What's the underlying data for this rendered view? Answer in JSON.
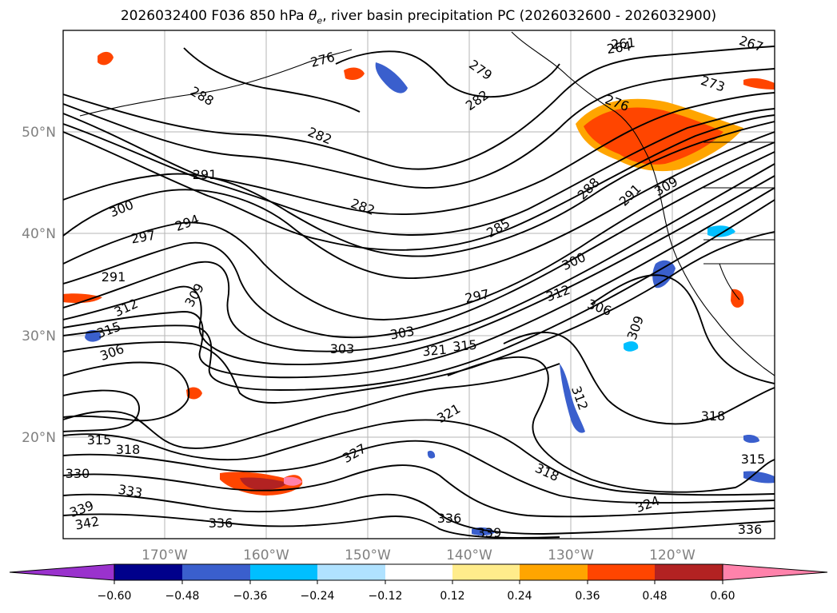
{
  "title": {
    "run": "2026032400",
    "forecast": "F036",
    "level": "850 hPa",
    "variable_symbol": "θ",
    "variable_subscript": "e",
    "rest": ", river basin precipitation PC",
    "period": "(2026032600 - 2026032900)"
  },
  "map": {
    "projection": "lat-lon",
    "lon_range": [
      -180,
      -110
    ],
    "lat_range": [
      10,
      60
    ],
    "grid": true,
    "lat_labels": [
      "20°N",
      "30°N",
      "40°N",
      "50°N"
    ],
    "lon_labels": [
      "170°W",
      "160°W",
      "150°W",
      "140°W",
      "130°W",
      "120°W"
    ],
    "contour_labels": [
      "264",
      "261",
      "267",
      "273",
      "276",
      "279",
      "276",
      "282",
      "288",
      "282",
      "291",
      "282",
      "300",
      "297",
      "294",
      "285",
      "288",
      "291",
      "309",
      "291",
      "300",
      "312",
      "309",
      "297",
      "315",
      "306",
      "312",
      "306",
      "303",
      "321",
      "315",
      "309",
      "303",
      "312",
      "321",
      "318",
      "318",
      "327",
      "315",
      "330",
      "333",
      "339",
      "342",
      "336",
      "336",
      "339",
      "318",
      "324",
      "336",
      "315"
    ]
  },
  "colorbar": {
    "ticks": [
      "−0.60",
      "−0.48",
      "−0.36",
      "−0.24",
      "−0.12",
      "0.12",
      "0.24",
      "0.36",
      "0.48",
      "0.60"
    ],
    "colors": {
      "under": "#9a32cd",
      "bins": [
        "#00008b",
        "#3a5fcd",
        "#00bfff",
        "#b0e2ff",
        "#ffffff",
        "#ffec8b",
        "#ffa500",
        "#ff4500",
        "#b22222",
        "#ff82ab"
      ],
      "over": "#ff82ab"
    }
  }
}
